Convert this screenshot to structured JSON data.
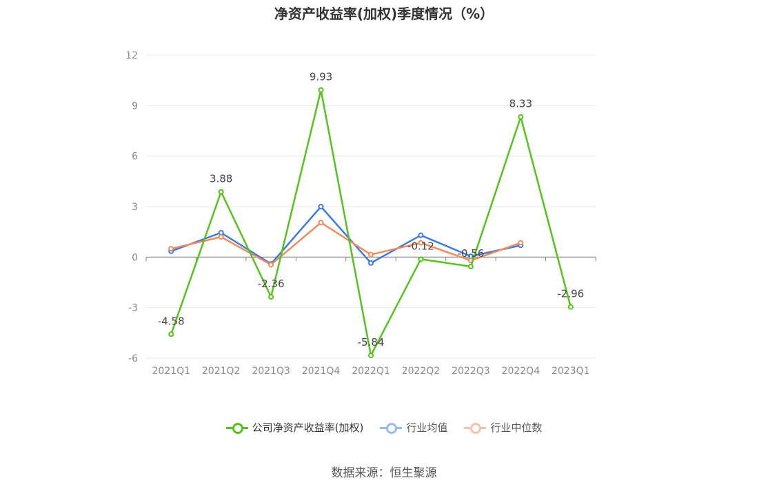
{
  "title": "净资产收益率(加权)季度情况（%）",
  "source": "数据来源：恒生聚源",
  "chart_data": {
    "type": "line",
    "categories": [
      "2021Q1",
      "2021Q2",
      "2021Q3",
      "2021Q4",
      "2022Q1",
      "2022Q2",
      "2022Q3",
      "2022Q4",
      "2023Q1"
    ],
    "ylim": [
      -6,
      12
    ],
    "yticks": [
      12,
      9,
      6,
      3,
      0,
      -3,
      -6
    ],
    "grid": true,
    "legend_position": "bottom",
    "series": [
      {
        "name": "公司净资产收益率(加权)",
        "color": "#52c41a",
        "values": [
          -4.58,
          3.88,
          -2.36,
          9.93,
          -5.84,
          -0.12,
          -0.56,
          8.33,
          -2.96
        ],
        "labels": [
          "-4.58",
          "3.88",
          "-2.36",
          "9.93",
          "-5.84",
          "-0.12",
          "-0.56",
          "8.33",
          "-2.96"
        ]
      },
      {
        "name": "行业均值",
        "color": "#3d7be3",
        "values": [
          0.35,
          1.45,
          -0.4,
          3.0,
          -0.35,
          1.3,
          0.05,
          0.7,
          null
        ]
      },
      {
        "name": "行业中位数",
        "color": "#f28a5c",
        "values": [
          0.5,
          1.2,
          -0.45,
          2.05,
          0.15,
          0.85,
          -0.2,
          0.85,
          null
        ]
      }
    ]
  }
}
